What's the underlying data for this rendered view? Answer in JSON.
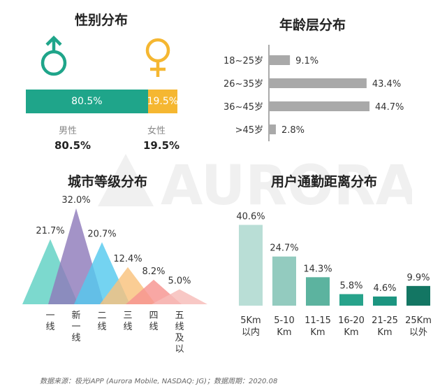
{
  "watermark": {
    "text": "AURORA 极光"
  },
  "colors": {
    "male": "#1fa58a",
    "female": "#f5b731",
    "age_bar": "#a9a9a9",
    "commute": [
      "#b9ded6",
      "#93cbbf",
      "#5cb39f",
      "#27a38b",
      "#1c9580",
      "#137663"
    ],
    "city": [
      "#5fd1c3",
      "#8f7bbb",
      "#56c9ee",
      "#f9c27d",
      "#f69490",
      "#f6bcb8"
    ]
  },
  "gender": {
    "title": "性别分布",
    "male": {
      "label": "男性",
      "value": 80.5,
      "bar_text": "80.5%",
      "pct_text": "80.5%",
      "symbol": "♂"
    },
    "female": {
      "label": "女性",
      "value": 19.5,
      "bar_text": "19.5%",
      "pct_text": "19.5%",
      "symbol": "♀"
    }
  },
  "source": "数据来源：极光iAPP (Aurora Mobile, NASDAQ: JG)；数据周期：2020.08",
  "chart_data": [
    {
      "id": "age",
      "type": "bar",
      "orientation": "horizontal",
      "title": "年龄层分布",
      "categories": [
        "18~25岁",
        "26~35岁",
        "36~45岁",
        ">45岁"
      ],
      "values": [
        9.1,
        43.4,
        44.7,
        2.8
      ],
      "labels": [
        "9.1%",
        "43.4%",
        "44.7%",
        "2.8%"
      ],
      "xlim": [
        0,
        50
      ]
    },
    {
      "id": "city",
      "type": "area",
      "title": "城市等级分布",
      "categories": [
        "一线",
        "新一线",
        "二线",
        "三线",
        "四线",
        "五线及以下"
      ],
      "values": [
        21.7,
        32.0,
        20.7,
        12.4,
        8.2,
        5.0
      ],
      "labels": [
        "21.7%",
        "32.0%",
        "20.7%",
        "12.4%",
        "8.2%",
        "5.0%"
      ],
      "ylim": [
        0,
        35
      ]
    },
    {
      "id": "commute",
      "type": "bar",
      "title": "用户通勤距离分布",
      "categories": [
        "5Km以内",
        "5-10Km",
        "11-15Km",
        "16-20Km",
        "21-25Km",
        "25Km以外"
      ],
      "category_lines": [
        [
          "5Km",
          "以内"
        ],
        [
          "5-10",
          "Km"
        ],
        [
          "11-15",
          "Km"
        ],
        [
          "16-20",
          "Km"
        ],
        [
          "21-25",
          "Km"
        ],
        [
          "25Km",
          "以外"
        ]
      ],
      "values": [
        40.6,
        24.7,
        14.3,
        5.8,
        4.6,
        9.9
      ],
      "labels": [
        "40.6%",
        "24.7%",
        "14.3%",
        "5.8%",
        "4.6%",
        "9.9%"
      ],
      "ylim": [
        0,
        45
      ]
    }
  ]
}
